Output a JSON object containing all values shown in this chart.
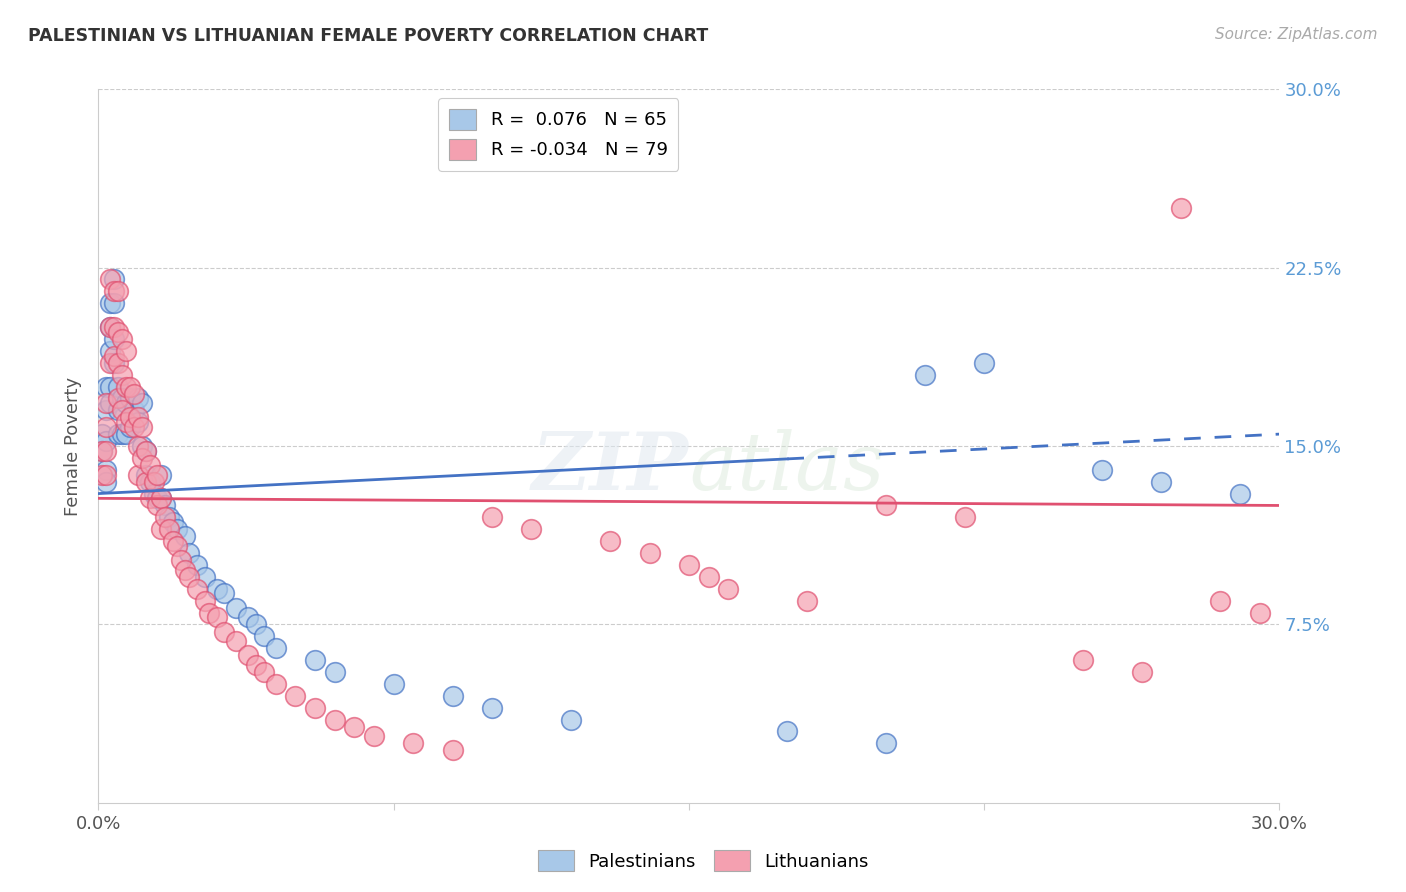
{
  "title": "PALESTINIAN VS LITHUANIAN FEMALE POVERTY CORRELATION CHART",
  "source": "Source: ZipAtlas.com",
  "ylabel": "Female Poverty",
  "xmin": 0.0,
  "xmax": 0.3,
  "ymin": 0.0,
  "ymax": 0.3,
  "blue_R": 0.076,
  "blue_N": 65,
  "pink_R": -0.034,
  "pink_N": 79,
  "blue_color": "#a8c8e8",
  "pink_color": "#f4a0b0",
  "blue_line_color": "#4472c4",
  "pink_line_color": "#e05070",
  "blue_line_solid_end": 0.175,
  "blue_line_start_y": 0.13,
  "blue_line_end_y": 0.155,
  "pink_line_start_y": 0.128,
  "pink_line_end_y": 0.125,
  "blue_points_x": [
    0.001,
    0.001,
    0.002,
    0.002,
    0.002,
    0.002,
    0.002,
    0.003,
    0.003,
    0.003,
    0.003,
    0.003,
    0.004,
    0.004,
    0.004,
    0.004,
    0.005,
    0.005,
    0.005,
    0.006,
    0.006,
    0.007,
    0.007,
    0.008,
    0.008,
    0.009,
    0.01,
    0.01,
    0.011,
    0.011,
    0.012,
    0.012,
    0.013,
    0.014,
    0.015,
    0.016,
    0.016,
    0.017,
    0.018,
    0.019,
    0.02,
    0.022,
    0.023,
    0.025,
    0.027,
    0.03,
    0.032,
    0.035,
    0.038,
    0.04,
    0.042,
    0.045,
    0.055,
    0.06,
    0.075,
    0.09,
    0.1,
    0.12,
    0.175,
    0.2,
    0.21,
    0.225,
    0.255,
    0.27,
    0.29
  ],
  "blue_points_y": [
    0.155,
    0.148,
    0.175,
    0.165,
    0.152,
    0.14,
    0.135,
    0.21,
    0.2,
    0.19,
    0.175,
    0.168,
    0.22,
    0.21,
    0.195,
    0.185,
    0.175,
    0.165,
    0.155,
    0.17,
    0.155,
    0.168,
    0.155,
    0.17,
    0.158,
    0.165,
    0.17,
    0.16,
    0.168,
    0.15,
    0.148,
    0.138,
    0.135,
    0.13,
    0.128,
    0.138,
    0.128,
    0.125,
    0.12,
    0.118,
    0.115,
    0.112,
    0.105,
    0.1,
    0.095,
    0.09,
    0.088,
    0.082,
    0.078,
    0.075,
    0.07,
    0.065,
    0.06,
    0.055,
    0.05,
    0.045,
    0.04,
    0.035,
    0.03,
    0.025,
    0.18,
    0.185,
    0.14,
    0.135,
    0.13
  ],
  "pink_points_x": [
    0.001,
    0.001,
    0.002,
    0.002,
    0.002,
    0.002,
    0.003,
    0.003,
    0.003,
    0.004,
    0.004,
    0.004,
    0.005,
    0.005,
    0.005,
    0.005,
    0.006,
    0.006,
    0.006,
    0.007,
    0.007,
    0.007,
    0.008,
    0.008,
    0.009,
    0.009,
    0.01,
    0.01,
    0.01,
    0.011,
    0.011,
    0.012,
    0.012,
    0.013,
    0.013,
    0.014,
    0.015,
    0.015,
    0.016,
    0.016,
    0.017,
    0.018,
    0.019,
    0.02,
    0.021,
    0.022,
    0.023,
    0.025,
    0.027,
    0.028,
    0.03,
    0.032,
    0.035,
    0.038,
    0.04,
    0.042,
    0.045,
    0.05,
    0.055,
    0.06,
    0.065,
    0.07,
    0.08,
    0.09,
    0.1,
    0.11,
    0.13,
    0.14,
    0.15,
    0.155,
    0.16,
    0.18,
    0.2,
    0.22,
    0.25,
    0.265,
    0.275,
    0.285,
    0.295
  ],
  "pink_points_y": [
    0.148,
    0.138,
    0.168,
    0.158,
    0.148,
    0.138,
    0.22,
    0.2,
    0.185,
    0.215,
    0.2,
    0.188,
    0.215,
    0.198,
    0.185,
    0.17,
    0.195,
    0.18,
    0.165,
    0.19,
    0.175,
    0.16,
    0.175,
    0.162,
    0.172,
    0.158,
    0.162,
    0.15,
    0.138,
    0.158,
    0.145,
    0.148,
    0.135,
    0.142,
    0.128,
    0.135,
    0.138,
    0.125,
    0.128,
    0.115,
    0.12,
    0.115,
    0.11,
    0.108,
    0.102,
    0.098,
    0.095,
    0.09,
    0.085,
    0.08,
    0.078,
    0.072,
    0.068,
    0.062,
    0.058,
    0.055,
    0.05,
    0.045,
    0.04,
    0.035,
    0.032,
    0.028,
    0.025,
    0.022,
    0.12,
    0.115,
    0.11,
    0.105,
    0.1,
    0.095,
    0.09,
    0.085,
    0.125,
    0.12,
    0.06,
    0.055,
    0.25,
    0.085,
    0.08
  ]
}
